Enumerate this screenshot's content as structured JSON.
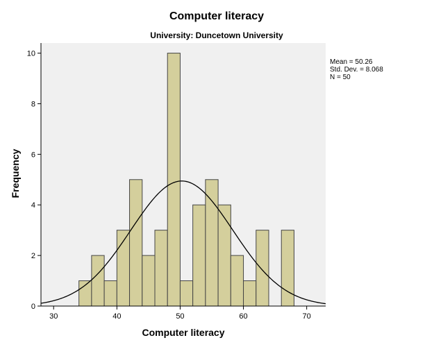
{
  "chart_data": {
    "type": "bar",
    "title": "Computer literacy",
    "subtitle": "University: Duncetown University",
    "xlabel": "Computer literacy",
    "ylabel": "Frequency",
    "xlim": [
      28,
      73
    ],
    "ylim": [
      0,
      10.4
    ],
    "x_ticks": [
      30,
      40,
      50,
      60,
      70
    ],
    "y_ticks": [
      0,
      2,
      4,
      6,
      8,
      10
    ],
    "bin_width": 2,
    "bins": [
      {
        "start": 34,
        "end": 36,
        "count": 1
      },
      {
        "start": 36,
        "end": 38,
        "count": 2
      },
      {
        "start": 38,
        "end": 40,
        "count": 1
      },
      {
        "start": 40,
        "end": 42,
        "count": 3
      },
      {
        "start": 42,
        "end": 44,
        "count": 5
      },
      {
        "start": 44,
        "end": 46,
        "count": 2
      },
      {
        "start": 46,
        "end": 48,
        "count": 3
      },
      {
        "start": 48,
        "end": 50,
        "count": 10
      },
      {
        "start": 50,
        "end": 52,
        "count": 1
      },
      {
        "start": 52,
        "end": 54,
        "count": 4
      },
      {
        "start": 54,
        "end": 56,
        "count": 5
      },
      {
        "start": 56,
        "end": 58,
        "count": 4
      },
      {
        "start": 58,
        "end": 60,
        "count": 2
      },
      {
        "start": 60,
        "end": 62,
        "count": 1
      },
      {
        "start": 62,
        "end": 64,
        "count": 3
      },
      {
        "start": 66,
        "end": 68,
        "count": 3
      }
    ],
    "normal_curve": {
      "mean": 50.26,
      "sd": 8.068,
      "n": 50
    },
    "stats_lines": [
      "Mean = 50.26",
      "Std. Dev. = 8.068",
      "N = 50"
    ],
    "grid": false,
    "legend": "right",
    "colors": {
      "bar_fill": "#d4cf9c",
      "bar_stroke": "#444444",
      "plot_bg": "#f0f0f0",
      "curve": "#000000"
    }
  }
}
